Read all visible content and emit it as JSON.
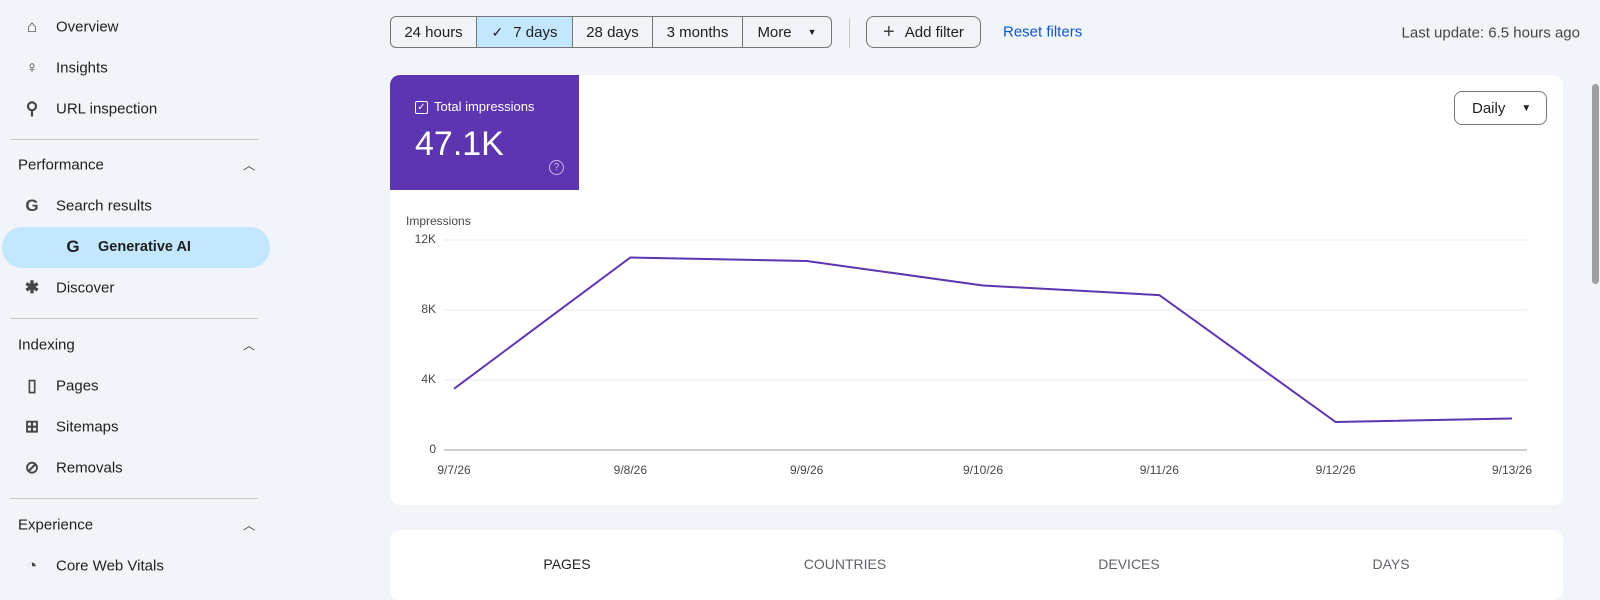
{
  "nav": {
    "top": [
      "Overview",
      "Insights",
      "URL inspection"
    ],
    "sections": [
      {
        "title": "Performance",
        "items": [
          "Search results",
          "Generative AI",
          "Discover"
        ]
      },
      {
        "title": "Indexing",
        "items": [
          "Pages",
          "Sitemaps",
          "Removals"
        ]
      },
      {
        "title": "Experience",
        "items": [
          "Core Web Vitals"
        ]
      }
    ]
  },
  "toolbar": {
    "ranges": [
      "24 hours",
      "7 days",
      "28 days",
      "3 months",
      "More"
    ],
    "add_filter": "Add filter",
    "reset": "Reset filters",
    "last_update": "Last update: 6.5 hours ago"
  },
  "metric": {
    "label": "Total impressions",
    "value": "47.1K"
  },
  "controls": {
    "interval": "Daily"
  },
  "chart_data": {
    "type": "line",
    "y_label": "Impressions",
    "x": [
      "9/7/26",
      "9/8/26",
      "9/9/26",
      "9/10/26",
      "9/11/26",
      "9/12/26",
      "9/13/26"
    ],
    "values": [
      3500,
      11000,
      10800,
      9400,
      8850,
      1600,
      1800
    ],
    "color": "#5e35b1",
    "ylim": [
      0,
      12000
    ],
    "yticks": [
      0,
      {
        "value": 4000,
        "label": "4K"
      },
      {
        "value": 8000,
        "label": "8K"
      },
      {
        "value": 12000,
        "label": "12K"
      }
    ],
    "grid": true
  },
  "tabs": [
    "PAGES",
    "COUNTRIES",
    "DEVICES",
    "DAYS"
  ]
}
